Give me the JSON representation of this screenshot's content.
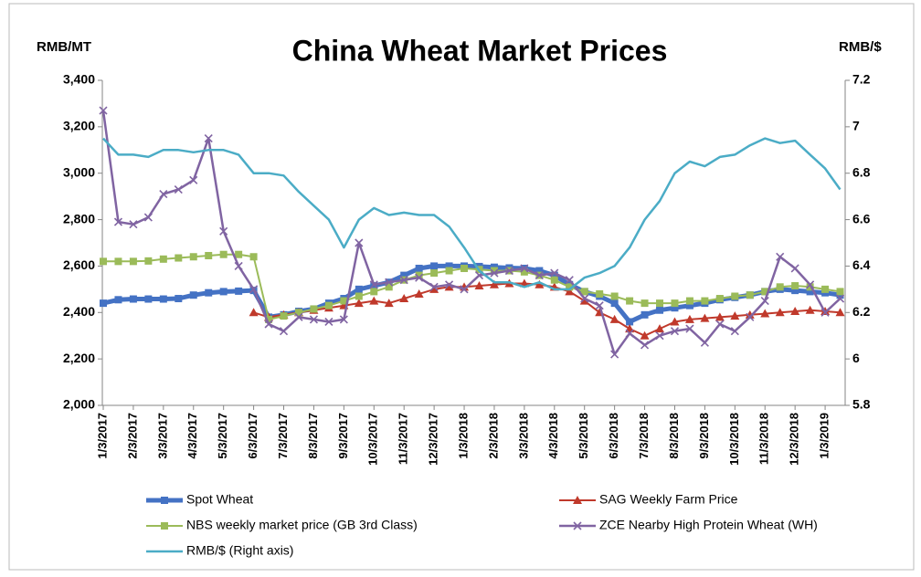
{
  "chart_data": {
    "type": "line",
    "title": "China Wheat Market Prices",
    "y_label": "RMB/MT",
    "y2_label": "RMB/$",
    "categories": [
      "1/3/2017",
      null,
      "2/3/2017",
      null,
      "3/3/2017",
      null,
      "4/3/2017",
      null,
      "5/3/2017",
      null,
      "6/3/2017",
      null,
      "7/3/2017",
      null,
      "8/3/2017",
      null,
      "9/3/2017",
      null,
      "10/3/2017",
      null,
      "11/3/2017",
      null,
      "12/3/2017",
      null,
      "1/3/2018",
      null,
      "2/3/2018",
      null,
      "3/3/2018",
      null,
      "4/3/2018",
      null,
      "5/3/2018",
      null,
      "6/3/2018",
      null,
      "7/3/2018",
      null,
      "8/3/2018",
      null,
      "9/3/2018",
      null,
      "10/3/2018",
      null,
      "11/3/2018",
      null,
      "12/3/2018",
      null,
      "1/3/2019",
      null
    ],
    "ylim": [
      2000,
      3400
    ],
    "yticks": [
      {
        "value": 2000,
        "label": "2,000"
      },
      {
        "value": 2200,
        "label": "2,200"
      },
      {
        "value": 2400,
        "label": "2,400"
      },
      {
        "value": 2600,
        "label": "2,600"
      },
      {
        "value": 2800,
        "label": "2,800"
      },
      {
        "value": 3000,
        "label": "3,000"
      },
      {
        "value": 3200,
        "label": "3,200"
      },
      {
        "value": 3400,
        "label": "3,400"
      }
    ],
    "y2lim": [
      5.8,
      7.2
    ],
    "y2ticks": [
      5.8,
      6,
      6.2,
      6.4,
      6.6,
      6.8,
      7,
      7.2
    ],
    "grid": false,
    "legend": "bottom",
    "series": [
      {
        "name": "Spot Wheat",
        "color": "#4472c4",
        "marker": "square",
        "width": 5,
        "values": [
          2440,
          2455,
          2458,
          2458,
          2458,
          2460,
          2475,
          2485,
          2490,
          2492,
          2495,
          2380,
          2390,
          2405,
          2415,
          2440,
          2460,
          2500,
          2515,
          2530,
          2560,
          2590,
          2600,
          2600,
          2600,
          2598,
          2595,
          2592,
          2590,
          2580,
          2560,
          2520,
          2490,
          2470,
          2440,
          2360,
          2390,
          2410,
          2420,
          2430,
          2440,
          2455,
          2465,
          2475,
          2490,
          2500,
          2495,
          2490,
          2485,
          2475
        ]
      },
      {
        "name": "SAG Weekly Farm Price",
        "color": "#c0392b",
        "marker": "triangle",
        "width": 2,
        "values": [
          null,
          null,
          null,
          null,
          null,
          null,
          null,
          null,
          null,
          null,
          2400,
          2380,
          2390,
          2400,
          2410,
          2420,
          2430,
          2440,
          2450,
          2440,
          2460,
          2480,
          2500,
          2510,
          2510,
          2515,
          2520,
          2525,
          2525,
          2520,
          2510,
          2490,
          2450,
          2400,
          2370,
          2330,
          2300,
          2330,
          2360,
          2370,
          2375,
          2380,
          2385,
          2390,
          2395,
          2400,
          2405,
          2410,
          2405,
          2400
        ]
      },
      {
        "name": "NBS weekly market price (GB 3rd Class)",
        "color": "#9bbb59",
        "marker": "square",
        "width": 2,
        "values": [
          2620,
          2620,
          2620,
          2622,
          2630,
          2635,
          2640,
          2645,
          2650,
          2650,
          2640,
          2370,
          2385,
          2400,
          2415,
          2430,
          2450,
          2470,
          2490,
          2510,
          2540,
          2560,
          2570,
          2580,
          2590,
          2585,
          2580,
          2580,
          2575,
          2560,
          2540,
          2510,
          2490,
          2480,
          2470,
          2450,
          2440,
          2440,
          2440,
          2450,
          2450,
          2460,
          2470,
          2475,
          2490,
          2510,
          2515,
          2510,
          2500,
          2490
        ]
      },
      {
        "name": "ZCE Nearby High Protein Wheat (WH)",
        "color": "#8064a2",
        "marker": "x",
        "width": 2.5,
        "values": [
          3270,
          2790,
          2780,
          2810,
          2910,
          2930,
          2970,
          3150,
          2750,
          2600,
          2500,
          2350,
          2320,
          2380,
          2370,
          2360,
          2370,
          2700,
          2520,
          2530,
          2540,
          2550,
          2510,
          2520,
          2500,
          2560,
          2570,
          2580,
          2590,
          2560,
          2570,
          2540,
          2460,
          2430,
          2220,
          2310,
          2260,
          2300,
          2320,
          2330,
          2270,
          2350,
          2320,
          2380,
          2450,
          2640,
          2590,
          2520,
          2400,
          2460
        ]
      },
      {
        "name": "RMB/$ (Right axis)",
        "color": "#4bacc6",
        "marker": "none",
        "width": 2.5,
        "axis": "y2",
        "values": [
          6.95,
          6.88,
          6.88,
          6.87,
          6.9,
          6.9,
          6.89,
          6.9,
          6.9,
          6.88,
          6.8,
          6.8,
          6.79,
          6.72,
          6.66,
          6.6,
          6.48,
          6.6,
          6.65,
          6.62,
          6.63,
          6.62,
          6.62,
          6.57,
          6.48,
          6.38,
          6.33,
          6.33,
          6.31,
          6.33,
          6.3,
          6.3,
          6.35,
          6.37,
          6.4,
          6.48,
          6.6,
          6.68,
          6.8,
          6.85,
          6.83,
          6.87,
          6.88,
          6.92,
          6.95,
          6.93,
          6.94,
          6.88,
          6.82,
          6.73
        ]
      }
    ]
  }
}
